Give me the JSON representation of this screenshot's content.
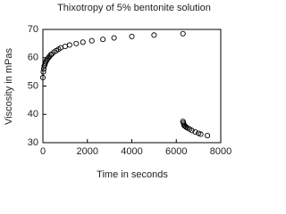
{
  "chart_data": {
    "type": "scatter",
    "title": "Thixotropy of 5% bentonite solution",
    "x_label": "Time in seconds",
    "y_label": "Viscosity in mPas",
    "xlim": [
      0,
      8000
    ],
    "xticks": [
      0,
      2000,
      4000,
      6000,
      8000
    ],
    "ylim": [
      30,
      70
    ],
    "yticks": [
      30,
      40,
      50,
      60,
      70
    ],
    "series": [
      {
        "color": "#000000",
        "x": [
          0,
          20,
          40,
          60,
          80,
          100,
          130,
          160,
          200,
          250,
          300,
          350,
          400,
          500,
          600,
          700,
          800,
          1000,
          1200,
          1500,
          1800,
          2200,
          2700,
          3200,
          4000,
          5000,
          6300,
          6300,
          6320,
          6340,
          6360,
          6400,
          6450,
          6500,
          6600,
          6700,
          6850,
          7000,
          7100,
          7400
        ],
        "values": [
          53,
          55,
          56,
          57,
          57.5,
          58,
          58.5,
          59,
          59.5,
          60,
          60.5,
          61,
          61.3,
          62,
          62.5,
          63,
          63.5,
          64,
          64.5,
          65,
          65.5,
          66,
          66.5,
          67,
          67.5,
          68,
          68.5,
          37.5,
          37,
          36.5,
          36,
          35.8,
          35.5,
          35.2,
          34.8,
          34.3,
          33.8,
          33.3,
          33,
          32.5
        ]
      }
    ]
  }
}
